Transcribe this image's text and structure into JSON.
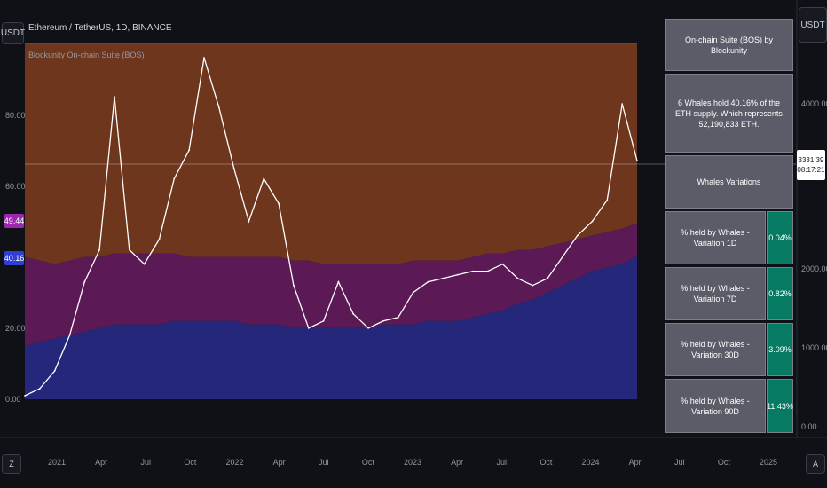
{
  "header": {
    "symbol_title": "Ethereum / TetherUS, 1D, BINANCE",
    "indicator_name": "Blockunity On-chain Suite (BOS)",
    "left_unit": "USDT",
    "right_unit": "USDT"
  },
  "left_axis": {
    "ticks": [
      "80.00",
      "60.00",
      "20.00",
      "0.00"
    ]
  },
  "right_axis": {
    "ticks": [
      "4000.00",
      "2000.00",
      "1000.00",
      "0.00"
    ]
  },
  "badges": {
    "dominance": "49.44",
    "whales": "40.16"
  },
  "price_badge": {
    "price": "3331.39",
    "countdown": "08:17:21"
  },
  "controls": {
    "zoom_left": "Z",
    "zoom_right": "A"
  },
  "x_axis": {
    "ticks": [
      "2021",
      "Apr",
      "Jul",
      "Oct",
      "2022",
      "Apr",
      "Jul",
      "Oct",
      "2023",
      "Apr",
      "Jul",
      "Oct",
      "2024",
      "Apr",
      "Jul",
      "Oct",
      "2025"
    ]
  },
  "table": {
    "title": "On-chain Suite (BOS) by Blockunity",
    "summary": "6 Whales hold 40.16% of the ETH supply. Which represents 52,190,833 ETH.",
    "section": "Whales Variations",
    "rows": [
      {
        "label": "% held by Whales - Variation 1D",
        "value": "0.04%"
      },
      {
        "label": "% held by Whales - Variation 7D",
        "value": "0.82%"
      },
      {
        "label": "% held by Whales - Variation 30D",
        "value": "3.09%"
      },
      {
        "label": "% held by Whales - Variation 90D",
        "value": "11.43%"
      }
    ]
  },
  "colors": {
    "top_band": "#6e361d",
    "mid_band": "#5b1a55",
    "low_band": "#25287a",
    "price_line": "#ffffff"
  },
  "chart_data": {
    "type": "area",
    "title": "Ethereum / TetherUS, 1D, BINANCE",
    "x": [
      "2020-11",
      "2020-12",
      "2021-01",
      "2021-02",
      "2021-03",
      "2021-04",
      "2021-05",
      "2021-06",
      "2021-07",
      "2021-08",
      "2021-09",
      "2021-10",
      "2021-11",
      "2021-12",
      "2022-01",
      "2022-02",
      "2022-03",
      "2022-04",
      "2022-05",
      "2022-06",
      "2022-07",
      "2022-08",
      "2022-09",
      "2022-10",
      "2022-11",
      "2022-12",
      "2023-01",
      "2023-02",
      "2023-03",
      "2023-04",
      "2023-05",
      "2023-06",
      "2023-07",
      "2023-08",
      "2023-09",
      "2023-10",
      "2023-11",
      "2023-12",
      "2024-01",
      "2024-02",
      "2024-03",
      "2024-04"
    ],
    "ylim": [
      0,
      100
    ],
    "series": [
      {
        "name": "ETH price",
        "values": [
          1,
          3,
          8,
          18,
          33,
          42,
          85,
          42,
          38,
          45,
          62,
          70,
          96,
          82,
          65,
          50,
          62,
          55,
          32,
          20,
          22,
          33,
          24,
          20,
          22,
          23,
          30,
          33,
          34,
          35,
          36,
          36,
          38,
          34,
          32,
          34,
          40,
          46,
          50,
          56,
          83,
          67
        ]
      },
      {
        "values": [
          15,
          16,
          17,
          18,
          19,
          20,
          21,
          21,
          21,
          21,
          22,
          22,
          22,
          22,
          22,
          21,
          21,
          21,
          20,
          20,
          20,
          20,
          20,
          20,
          21,
          21,
          21,
          22,
          22,
          22,
          23,
          24,
          25,
          27,
          28,
          30,
          32,
          34,
          36,
          37,
          38,
          40.16
        ]
      },
      {
        "values": [
          40,
          39,
          38,
          39,
          40,
          40,
          41,
          41,
          41,
          41,
          41,
          40,
          40,
          40,
          40,
          40,
          40,
          40,
          39,
          39,
          38,
          38,
          38,
          38,
          38,
          38,
          39,
          39,
          39,
          39,
          40,
          41,
          41,
          42,
          42,
          43,
          44,
          45,
          46,
          47,
          48,
          49.44
        ]
      },
      {
        "values": [
          100,
          100,
          100,
          100,
          100,
          100,
          100,
          100,
          100,
          100,
          100,
          100,
          100,
          100,
          100,
          100,
          100,
          100,
          100,
          100,
          100,
          100,
          100,
          100,
          100,
          100,
          100,
          100,
          100,
          100,
          100,
          100,
          100,
          100,
          100,
          100,
          100,
          100,
          100,
          100,
          100,
          100
        ]
      }
    ]
  }
}
